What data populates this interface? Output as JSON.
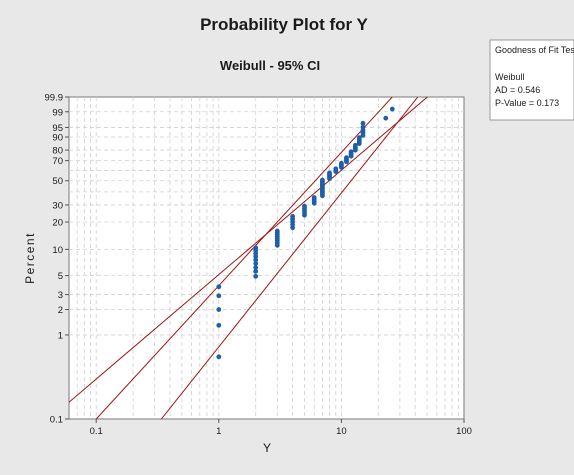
{
  "colors": {
    "background": "#e8e8e8",
    "plot_area": "#ffffff",
    "points": "#1f5fa8",
    "fit_lines": "#a01515",
    "grid": "#d0d0d0"
  },
  "chart_data": {
    "type": "scatter",
    "title": "Probability Plot for Y",
    "subtitle": "Weibull - 95% CI",
    "xlabel": "Y",
    "ylabel": "Percent",
    "x_scale": "log",
    "y_scale": "weibull-probability",
    "xlim": [
      0.06,
      100
    ],
    "ylim": [
      0.1,
      99.9
    ],
    "x_ticks": [
      0.1,
      1,
      10,
      100
    ],
    "x_tick_labels": [
      "0.1",
      "1",
      "10",
      "100"
    ],
    "y_ticks": [
      0.1,
      1,
      2,
      3,
      5,
      10,
      20,
      30,
      40,
      50,
      60,
      70,
      80,
      90,
      95,
      99,
      99.9
    ],
    "y_tick_labels": [
      {
        "value": 0.1,
        "label": "0.1"
      },
      {
        "value": 1,
        "label": "1"
      },
      {
        "value": 2,
        "label": "2"
      },
      {
        "value": 3,
        "label": "3"
      },
      {
        "value": 5,
        "label": "5"
      },
      {
        "value": 10,
        "label": "10"
      },
      {
        "value": 20,
        "label": "20"
      },
      {
        "value": 30,
        "label": "30"
      },
      {
        "value": 50,
        "label": "50"
      },
      {
        "value": 70,
        "label": "70"
      },
      {
        "value": 80,
        "label": "80"
      },
      {
        "value": 90,
        "label": "90"
      },
      {
        "value": 95,
        "label": "95"
      },
      {
        "value": 99,
        "label": "99"
      },
      {
        "value": 99.9,
        "label": "99.9"
      }
    ],
    "grid": true,
    "legend": {
      "placement": "right",
      "title": "Goodness of Fit Test",
      "lines": [
        "Weibull",
        "AD = 0.546",
        "P-Value = 0.173"
      ]
    },
    "fit": {
      "shape": 1.245,
      "scale": 10.64
    },
    "ci_lines": [
      {
        "name": "lower",
        "points": [
          [
            0.1,
            0.1
          ],
          [
            26,
            99.9
          ]
        ]
      },
      {
        "name": "upper",
        "points": [
          [
            0.34,
            0.1
          ],
          [
            42,
            99.9
          ]
        ]
      }
    ],
    "points": [
      [
        1,
        0.55
      ],
      [
        1,
        1.3
      ],
      [
        1,
        2.0
      ],
      [
        1,
        2.9
      ],
      [
        1,
        3.7
      ],
      [
        2,
        4.9
      ],
      [
        2,
        5.6
      ],
      [
        2,
        6.2
      ],
      [
        2,
        6.9
      ],
      [
        2,
        7.6
      ],
      [
        2,
        8.3
      ],
      [
        2,
        9.0
      ],
      [
        2,
        9.7
      ],
      [
        2,
        10.4
      ],
      [
        3,
        11.1
      ],
      [
        3,
        11.8
      ],
      [
        3,
        12.5
      ],
      [
        3,
        13.2
      ],
      [
        3,
        13.9
      ],
      [
        3,
        14.6
      ],
      [
        3,
        15.3
      ],
      [
        3,
        16.0
      ],
      [
        4,
        17.4
      ],
      [
        4,
        18.8
      ],
      [
        4,
        20.1
      ],
      [
        4,
        21.5
      ],
      [
        4,
        22.9
      ],
      [
        5,
        23.6
      ],
      [
        5,
        25.0
      ],
      [
        5,
        26.4
      ],
      [
        5,
        27.8
      ],
      [
        5,
        29.2
      ],
      [
        6,
        31.2
      ],
      [
        6,
        32.6
      ],
      [
        6,
        34.0
      ],
      [
        6,
        35.4
      ],
      [
        7,
        36.8
      ],
      [
        7,
        38.2
      ],
      [
        7,
        39.6
      ],
      [
        7,
        41.0
      ],
      [
        7,
        42.4
      ],
      [
        7,
        43.8
      ],
      [
        7,
        45.1
      ],
      [
        7,
        46.5
      ],
      [
        7,
        47.9
      ],
      [
        7,
        49.3
      ],
      [
        7,
        50.7
      ],
      [
        8,
        52.1
      ],
      [
        8,
        53.5
      ],
      [
        8,
        54.9
      ],
      [
        8,
        56.3
      ],
      [
        8,
        57.6
      ],
      [
        9,
        59.0
      ],
      [
        9,
        60.4
      ],
      [
        9,
        61.8
      ],
      [
        10,
        63.2
      ],
      [
        10,
        64.6
      ],
      [
        10,
        66.0
      ],
      [
        10,
        67.4
      ],
      [
        11,
        68.8
      ],
      [
        11,
        70.1
      ],
      [
        11,
        71.5
      ],
      [
        11,
        72.9
      ],
      [
        12,
        74.3
      ],
      [
        12,
        75.7
      ],
      [
        12,
        77.1
      ],
      [
        12,
        78.5
      ],
      [
        13,
        79.9
      ],
      [
        13,
        81.3
      ],
      [
        13,
        82.6
      ],
      [
        13,
        84.0
      ],
      [
        14,
        85.4
      ],
      [
        14,
        86.8
      ],
      [
        14,
        88.2
      ],
      [
        14,
        89.6
      ],
      [
        15,
        91.0
      ],
      [
        15,
        92.4
      ],
      [
        15,
        93.8
      ],
      [
        15,
        95.1
      ],
      [
        15,
        96.5
      ],
      [
        23,
        97.9
      ],
      [
        26,
        99.3
      ]
    ]
  }
}
